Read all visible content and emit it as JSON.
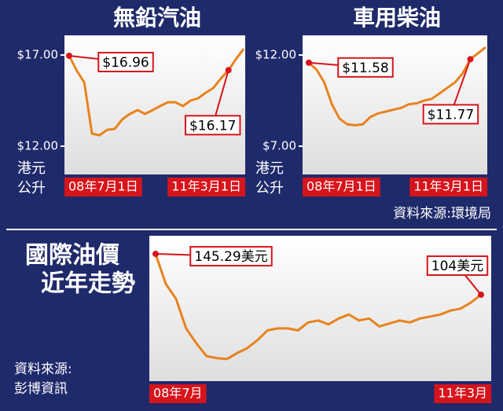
{
  "chart_data": [
    {
      "type": "line",
      "title": "無鉛汽油",
      "unit": [
        "港元",
        "公升"
      ],
      "categories": [
        "08年7月1日",
        null,
        null,
        null,
        null,
        null,
        null,
        null,
        null,
        null,
        null,
        null,
        null,
        null,
        null,
        null,
        null,
        null,
        null,
        null,
        null,
        "11年3月1日",
        null,
        null
      ],
      "values": [
        16.96,
        16.14,
        15.49,
        12.69,
        12.6,
        12.9,
        12.95,
        13.47,
        13.77,
        13.98,
        13.77,
        13.98,
        14.2,
        14.41,
        14.41,
        14.2,
        14.5,
        14.63,
        14.93,
        15.19,
        15.71,
        16.17,
        16.78,
        17.34
      ],
      "value_labels": [
        "$16.96",
        null,
        null,
        null,
        null,
        null,
        null,
        null,
        null,
        null,
        null,
        null,
        null,
        null,
        null,
        null,
        null,
        null,
        null,
        null,
        null,
        "$16.17",
        null,
        null
      ],
      "color": "#e8821e",
      "marker_color": "#d7141c",
      "ylim": [
        10.45,
        18.08
      ],
      "yticks": [
        {
          "value": 12,
          "label": "$12.00"
        },
        {
          "value": 17,
          "label": "$17.00"
        }
      ]
    },
    {
      "type": "line",
      "title": "車用柴油",
      "unit": [
        "港元",
        "公升"
      ],
      "source": "資料來源:環境局",
      "categories": [
        "08年7月1日",
        null,
        null,
        null,
        null,
        null,
        null,
        null,
        null,
        null,
        null,
        null,
        null,
        null,
        null,
        null,
        null,
        null,
        null,
        null,
        null,
        "11年3月1日",
        null,
        null
      ],
      "values": [
        11.58,
        11.2,
        10.5,
        9.3,
        8.5,
        8.2,
        8.15,
        8.2,
        8.6,
        8.8,
        8.9,
        9.0,
        9.1,
        9.3,
        9.35,
        9.5,
        9.6,
        9.9,
        10.2,
        10.5,
        11.0,
        11.77,
        12.1,
        12.43
      ],
      "value_labels": [
        "$11.58",
        null,
        null,
        null,
        null,
        null,
        null,
        null,
        null,
        null,
        null,
        null,
        null,
        null,
        null,
        null,
        null,
        null,
        null,
        null,
        null,
        "$11.77",
        null,
        null
      ],
      "color": "#e8821e",
      "marker_color": "#d7141c",
      "ylim": [
        5.45,
        13.08
      ],
      "yticks": [
        {
          "value": 7,
          "label": "$7.00"
        },
        {
          "value": 12,
          "label": "$12.00"
        }
      ]
    },
    {
      "type": "line",
      "title": [
        "國際油價",
        "近年走勢"
      ],
      "source": [
        "資料來源:",
        "彭博資訊"
      ],
      "categories": [
        "08年7月",
        null,
        null,
        null,
        null,
        null,
        null,
        null,
        null,
        null,
        null,
        null,
        null,
        null,
        null,
        null,
        null,
        null,
        null,
        null,
        null,
        null,
        null,
        null,
        null,
        null,
        null,
        null,
        null,
        null,
        null,
        null,
        "11年3月"
      ],
      "values": [
        145.29,
        115,
        100,
        70,
        55,
        42,
        40,
        39,
        45,
        50,
        58,
        68,
        70,
        70,
        68,
        76,
        78,
        74,
        80,
        84,
        78,
        80,
        72,
        75,
        78,
        76,
        80,
        82,
        84,
        88,
        90,
        96,
        104
      ],
      "value_labels": [
        "145.29美元",
        null,
        null,
        null,
        null,
        null,
        null,
        null,
        null,
        null,
        null,
        null,
        null,
        null,
        null,
        null,
        null,
        null,
        null,
        null,
        null,
        null,
        null,
        null,
        null,
        null,
        null,
        null,
        null,
        null,
        null,
        null,
        "104美元"
      ],
      "color": "#e8821e",
      "marker_color": "#d7141c",
      "ylim": [
        16.7,
        163.6
      ]
    }
  ]
}
